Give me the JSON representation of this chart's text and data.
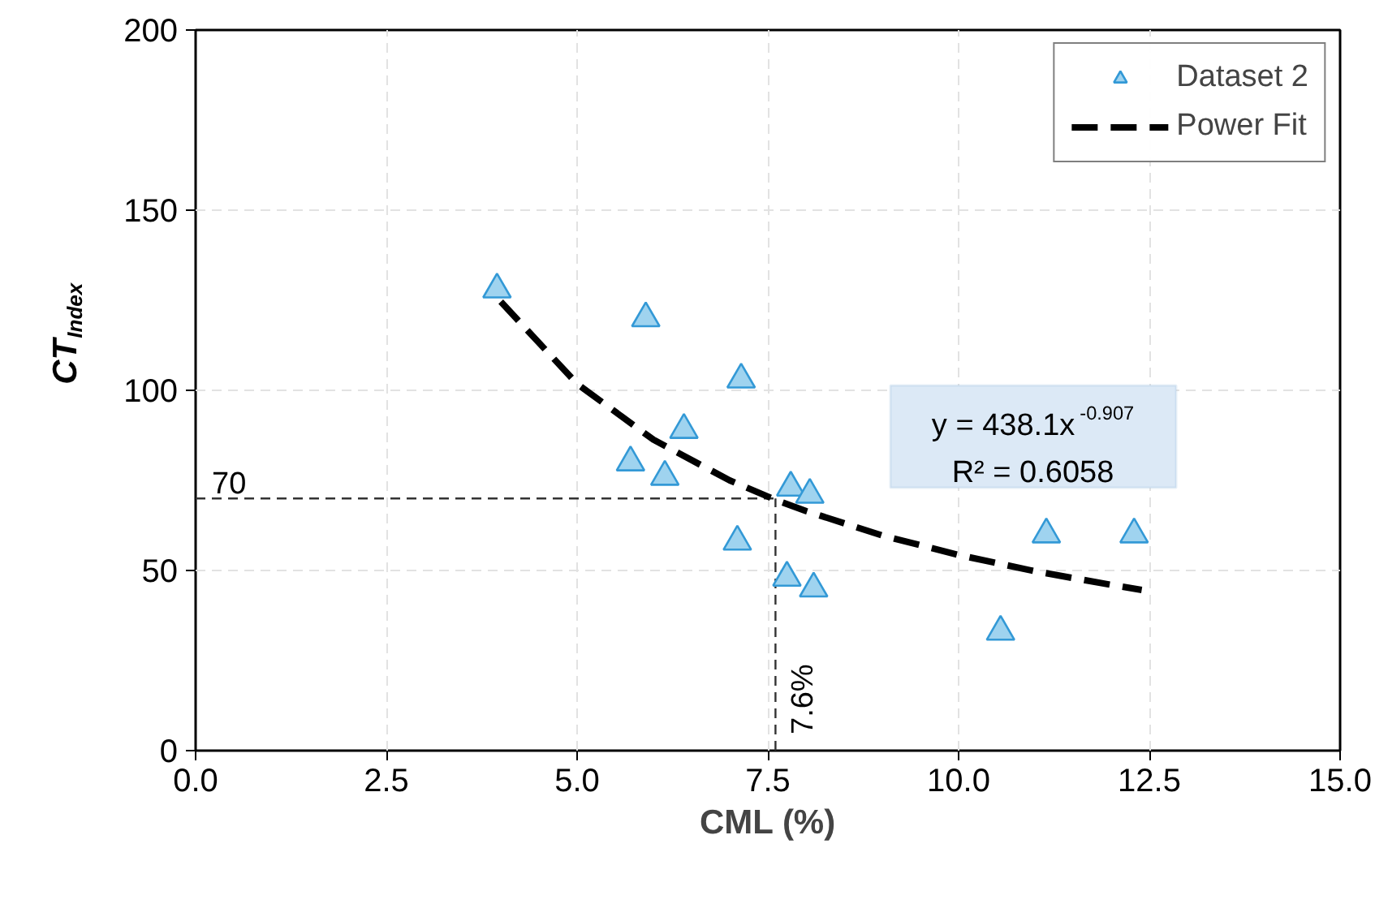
{
  "chart_data": {
    "type": "scatter",
    "xlabel": "CML (%)",
    "ylabel": "CT$_{Index}$",
    "xlim": [
      0,
      15
    ],
    "ylim": [
      0,
      200
    ],
    "xticks": [
      {
        "value": 0,
        "label": "0.0"
      },
      {
        "value": 2.5,
        "label": "2.5"
      },
      {
        "value": 5,
        "label": "5.0"
      },
      {
        "value": 7.5,
        "label": "7.5"
      },
      {
        "value": 10,
        "label": "10.0"
      },
      {
        "value": 12.5,
        "label": "12.5"
      },
      {
        "value": 15,
        "label": "15.0"
      }
    ],
    "yticks": [
      0,
      50,
      100,
      150,
      200
    ],
    "grid": true,
    "legend": "top right",
    "series": [
      {
        "name": "Dataset 2",
        "marker": "triangle",
        "color": "#9fd3ef",
        "x": [
          3.95,
          5.9,
          7.15,
          6.4,
          5.7,
          6.15,
          7.8,
          8.05,
          7.1,
          7.75,
          8.1,
          11.15,
          12.3,
          10.55
        ],
        "values": [
          128,
          120,
          103,
          89,
          80,
          76,
          73,
          71,
          58,
          48,
          45,
          60,
          60,
          33
        ]
      },
      {
        "name": "Power Fit",
        "type": "line",
        "line_style": "dashed",
        "color": "#000000",
        "x": [
          4,
          5,
          6,
          7,
          7.6,
          8,
          9,
          10,
          11,
          12,
          12.4
        ],
        "values": [
          124.6,
          101.8,
          86.3,
          75.0,
          69.6,
          66.5,
          59.7,
          54.3,
          49.8,
          46.0,
          44.6
        ]
      }
    ],
    "ref_lines": [
      {
        "axis": "y",
        "value": 70,
        "label": "70",
        "line_style": "dashed",
        "color": "#333333"
      },
      {
        "axis": "x",
        "value": 7.6,
        "label": "7.6%",
        "line_style": "dashed",
        "color": "#333333"
      }
    ],
    "annotations": [
      "y = 438.1x$^{-0.907}$",
      "R² = 0.6058"
    ]
  }
}
